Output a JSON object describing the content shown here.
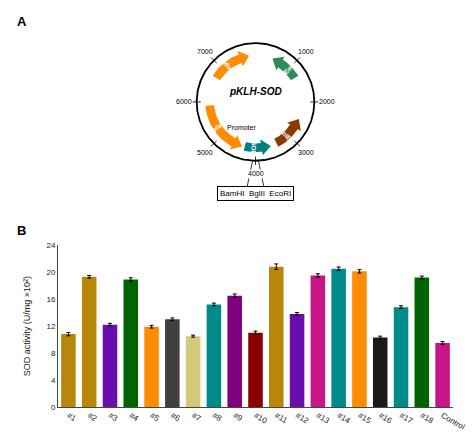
{
  "chart_data": [
    {
      "type": "plasmid_map",
      "title": "A",
      "xlim": [
        0,
        8000
      ],
      "xticks": [
        7000,
        1000,
        2000,
        3000,
        4000,
        5000,
        6000
      ],
      "series": [
        {
          "name": "repD",
          "color": "#FF8C00",
          "values": [
            6700,
            7600
          ]
        },
        {
          "name": "Em",
          "color": "#2E8B57",
          "values": [
            1300,
            700
          ]
        },
        {
          "name": "repE",
          "color": "#FF8C00",
          "values": [
            5900,
            4600
          ]
        },
        {
          "name": "colE1",
          "color": "#8B3A00",
          "values": [
            3400,
            2700
          ]
        },
        {
          "name": "SOD",
          "color": "#008080",
          "values": [
            4300,
            3800
          ]
        }
      ],
      "annotations": [
        {
          "text": "pKLH-SOD"
        },
        {
          "text": "Promoter",
          "x": 4500
        },
        {
          "text": "BamHI  BglII  EcoRI",
          "x": 4000
        }
      ]
    },
    {
      "type": "bar",
      "title": "B",
      "categories": [
        "#1",
        "#2",
        "#3",
        "#4",
        "#5",
        "#6",
        "#7",
        "#8",
        "#9",
        "#10",
        "#11",
        "#12",
        "#13",
        "#14",
        "#15",
        "#16",
        "#17",
        "#18",
        "Control"
      ],
      "values": [
        10.8,
        19.3,
        12.2,
        18.9,
        11.9,
        13.0,
        10.5,
        15.2,
        16.5,
        11.0,
        20.8,
        13.8,
        19.5,
        20.5,
        20.1,
        10.3,
        14.8,
        19.2,
        9.5
      ],
      "errors": [
        0.25,
        0.2,
        0.2,
        0.25,
        0.2,
        0.2,
        0.15,
        0.2,
        0.25,
        0.25,
        0.4,
        0.2,
        0.25,
        0.25,
        0.25,
        0.2,
        0.2,
        0.2,
        0.2
      ],
      "colors": [
        "#b8860b",
        "#b8860b",
        "#6a0dad",
        "#006400",
        "#ff8c00",
        "#404040",
        "#d4c97a",
        "#008b8b",
        "#800080",
        "#8b0000",
        "#b8860b",
        "#6a0dad",
        "#c71585",
        "#008b8b",
        "#ff8c00",
        "#1a1a1a",
        "#008b8b",
        "#006400",
        "#c71585"
      ],
      "ylabel": "SOD activity (U/mg ×10²)",
      "ylim": [
        0,
        24
      ],
      "yticks": [
        0,
        4,
        8,
        12,
        16,
        20,
        24
      ],
      "grid": false
    }
  ]
}
